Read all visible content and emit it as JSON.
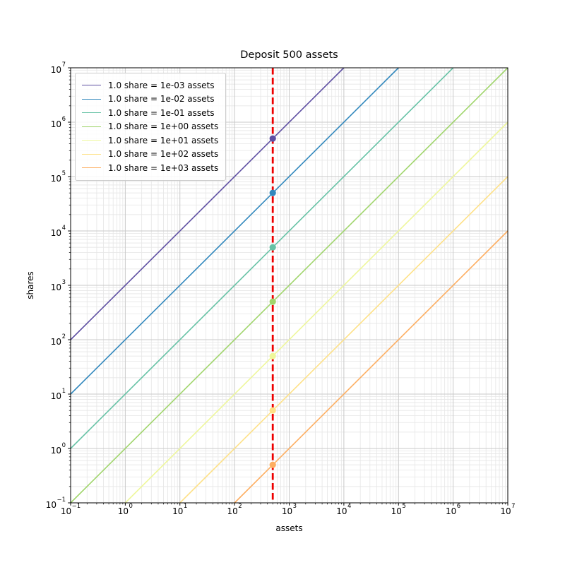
{
  "chart_data": {
    "type": "line",
    "title": "Deposit 500 assets",
    "xlabel": "assets",
    "ylabel": "shares",
    "x_scale": "log",
    "y_scale": "log",
    "x_range": [
      0.1,
      10000000
    ],
    "y_range": [
      0.1,
      10000000
    ],
    "x_tick_exponents": [
      -1,
      0,
      1,
      2,
      3,
      4,
      5,
      6,
      7
    ],
    "y_tick_exponents": [
      -1,
      0,
      1,
      2,
      3,
      4,
      5,
      6,
      7
    ],
    "grid": "major-and-minor",
    "legend_position": "upper-left",
    "deposit_assets": 500,
    "series": [
      {
        "label": "1.0 share = 1e-03 assets",
        "assets_per_share": 0.001,
        "color": "#5e4fa2",
        "point": {
          "assets": 500,
          "shares": 500000
        }
      },
      {
        "label": "1.0 share = 1e-02 assets",
        "assets_per_share": 0.01,
        "color": "#3288bd",
        "point": {
          "assets": 500,
          "shares": 50000
        }
      },
      {
        "label": "1.0 share = 1e-01 assets",
        "assets_per_share": 0.1,
        "color": "#66c2a5",
        "point": {
          "assets": 500,
          "shares": 5000
        }
      },
      {
        "label": "1.0 share = 1e+00 assets",
        "assets_per_share": 1,
        "color": "#a0d56c",
        "point": {
          "assets": 500,
          "shares": 500
        }
      },
      {
        "label": "1.0 share = 1e+01 assets",
        "assets_per_share": 10,
        "color": "#eef79b",
        "point": {
          "assets": 500,
          "shares": 50
        }
      },
      {
        "label": "1.0 share = 1e+02 assets",
        "assets_per_share": 100,
        "color": "#fee187",
        "point": {
          "assets": 500,
          "shares": 5
        }
      },
      {
        "label": "1.0 share = 1e+03 assets",
        "assets_per_share": 1000,
        "color": "#fdae61",
        "point": {
          "assets": 500,
          "shares": 0.5
        }
      }
    ],
    "vline": {
      "x": 500,
      "color": "#ee0000",
      "style": "dashed"
    },
    "colors": {
      "major_grid": "#c9c9c9",
      "minor_grid": "#e6e6e6",
      "spine": "#000000",
      "text": "#000000",
      "legend_border": "#cccccc"
    }
  }
}
